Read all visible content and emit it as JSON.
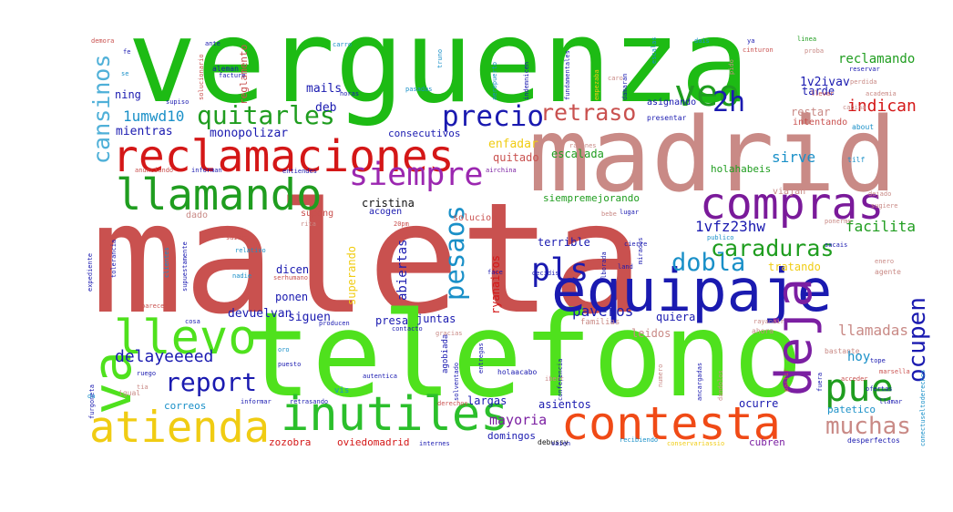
{
  "words": [
    {
      "text": "maleta",
      "color": "#c9514f"
    },
    {
      "text": "telefono",
      "color": "#4fe11d"
    },
    {
      "text": "verguenza",
      "color": "#1dbb14"
    },
    {
      "text": "madrid",
      "color": "#c98a86"
    },
    {
      "text": "equipaje",
      "color": "#1a1ab0"
    },
    {
      "text": "reclamaciones",
      "color": "#d41717"
    },
    {
      "text": "llamando",
      "color": "#1f9d1f"
    },
    {
      "text": "compras",
      "color": "#7a1a9a"
    },
    {
      "text": "inutiles",
      "color": "#2bbf2b"
    },
    {
      "text": "contesta",
      "color": "#f04a16"
    },
    {
      "text": "atienda",
      "color": "#f0cc13"
    },
    {
      "text": "deja",
      "color": "#7b1fa2"
    },
    {
      "text": "siempre",
      "color": "#9b27b0"
    },
    {
      "text": "llevo",
      "color": "#4fe11d"
    },
    {
      "text": "va",
      "color": "#4fe11d"
    },
    {
      "text": "veo",
      "color": "#1f9d1f"
    },
    {
      "text": "pue",
      "color": "#1f9d1f"
    },
    {
      "text": "report",
      "color": "#1a1ab0"
    },
    {
      "text": "quitarles",
      "color": "#1f9d1f"
    },
    {
      "text": "retraso",
      "color": "#c9514f"
    },
    {
      "text": "precio",
      "color": "#1a1ab0"
    },
    {
      "text": "pls",
      "color": "#1a1ab0"
    },
    {
      "text": "dobla",
      "color": "#1a90c8"
    },
    {
      "text": "caraduras",
      "color": "#1f9d1f"
    },
    {
      "text": "muchas",
      "color": "#c98a86"
    },
    {
      "text": "2h",
      "color": "#1a1ab0"
    },
    {
      "text": "cansinos",
      "color": "#4fb0d8"
    },
    {
      "text": "pesaos",
      "color": "#1a90c8"
    },
    {
      "text": "ocupen",
      "color": "#1a1ab0"
    },
    {
      "text": "delayeeeed",
      "color": "#1a1ab0"
    },
    {
      "text": "1umwd10",
      "color": "#1a90c8"
    },
    {
      "text": "cristina",
      "color": "#111111"
    },
    {
      "text": "facilita",
      "color": "#1f9d1f"
    },
    {
      "text": "paveros",
      "color": "#1a1ab0"
    },
    {
      "text": "mayoria",
      "color": "#7b1fa2"
    },
    {
      "text": "sirve",
      "color": "#1a90c8"
    },
    {
      "text": "indican",
      "color": "#d41717"
    },
    {
      "text": "1vfz23hw",
      "color": "#1a1ab0"
    },
    {
      "text": "llamadas",
      "color": "#c98a86"
    },
    {
      "text": "1v2ivav",
      "color": "#1a1ab0"
    },
    {
      "text": "hoy",
      "color": "#1a90c8"
    },
    {
      "text": "reclamando",
      "color": "#1f9d1f"
    },
    {
      "text": "monopolizar",
      "color": "#1a1ab0"
    },
    {
      "text": "mientras",
      "color": "#1a1ab0"
    },
    {
      "text": "consecutivos",
      "color": "#1a1ab0"
    },
    {
      "text": "enfadar",
      "color": "#f0cc13"
    },
    {
      "text": "quitado",
      "color": "#c9514f"
    },
    {
      "text": "escalada",
      "color": "#1f9d1f"
    },
    {
      "text": "siempremejorando",
      "color": "#1f9d1f"
    },
    {
      "text": "holahabeis",
      "color": "#1f9d1f"
    },
    {
      "text": "restar",
      "color": "#c98a86"
    },
    {
      "text": "tratando",
      "color": "#f0cc13"
    },
    {
      "text": "devuelvan",
      "color": "#1a1ab0"
    },
    {
      "text": "siguen",
      "color": "#1a1ab0"
    },
    {
      "text": "ponen",
      "color": "#1a1ab0"
    },
    {
      "text": "dicen",
      "color": "#1a1ab0"
    },
    {
      "text": "quiera",
      "color": "#1a1ab0"
    },
    {
      "text": "leidos",
      "color": "#c98a86"
    },
    {
      "text": "abiertas",
      "color": "#1a1ab0"
    },
    {
      "text": "superando",
      "color": "#f0cc13"
    },
    {
      "text": "ryanairos",
      "color": "#d41717"
    },
    {
      "text": "terrible",
      "color": "#1a1ab0"
    },
    {
      "text": "largas",
      "color": "#1a1ab0"
    },
    {
      "text": "asientos",
      "color": "#1a1ab0"
    },
    {
      "text": "ocurre",
      "color": "#1a1ab0"
    },
    {
      "text": "domingos",
      "color": "#1a1ab0"
    },
    {
      "text": "cubren",
      "color": "#7b1fa2"
    },
    {
      "text": "patetico",
      "color": "#1a90c8"
    },
    {
      "text": "zozobra",
      "color": "#d41717"
    },
    {
      "text": "oviedomadrid",
      "color": "#d41717"
    },
    {
      "text": "correos",
      "color": "#1a90c8"
    },
    {
      "text": "presa",
      "color": "#1a1ab0"
    },
    {
      "text": "juntas",
      "color": "#1a1ab0"
    },
    {
      "text": "mails",
      "color": "#1a1ab0"
    },
    {
      "text": "deb",
      "color": "#1a1ab0"
    },
    {
      "text": "tarde",
      "color": "#1a1ab0"
    },
    {
      "text": "asignando",
      "color": "#1a1ab0"
    },
    {
      "text": "intentando",
      "color": "#c9514f"
    },
    {
      "text": "ning",
      "color": "#1a1ab0"
    },
    {
      "text": "reglamento",
      "color": "#c9514f"
    },
    {
      "text": "acogen",
      "color": "#1a1ab0"
    },
    {
      "text": "solucion",
      "color": "#c9514f"
    },
    {
      "text": "supong",
      "color": "#c9514f"
    },
    {
      "text": "dado",
      "color": "#c98a86"
    },
    {
      "text": "viajan",
      "color": "#c98a86"
    },
    {
      "text": "bastante",
      "color": "#c98a86"
    },
    {
      "text": "agente",
      "color": "#c98a86"
    },
    {
      "text": "debussy",
      "color": "#111111"
    },
    {
      "text": "vis",
      "color": "#1a90c8"
    },
    {
      "text": "familias",
      "color": "#c98a86"
    },
    {
      "text": "agobiada",
      "color": "#1a1ab0"
    },
    {
      "text": "desperfectos",
      "color": "#1a1ab0"
    },
    {
      "text": "ahora",
      "color": "#c98a86"
    },
    {
      "text": "holaacabo",
      "color": "#1a1ab0"
    },
    {
      "text": "expediente",
      "color": "#1a1ab0"
    },
    {
      "text": "furgoneta",
      "color": "#1a1ab0"
    },
    {
      "text": "conectuseltoderechos",
      "color": "#1a90c8"
    },
    {
      "text": "facture",
      "color": "#1a1ab0"
    },
    {
      "text": "igual",
      "color": "#c98a86"
    },
    {
      "text": "demora",
      "color": "#c9514f"
    },
    {
      "text": "linea",
      "color": "#1f9d1f"
    },
    {
      "text": "proba",
      "color": "#c98a86"
    },
    {
      "text": "cinturon",
      "color": "#c9514f"
    },
    {
      "text": "pido",
      "color": "#c98a86"
    },
    {
      "text": "tilf",
      "color": "#1a90c8"
    },
    {
      "text": "dejado",
      "color": "#c98a86"
    },
    {
      "text": "sugiere",
      "color": "#c98a86"
    },
    {
      "text": "llevar",
      "color": "#c9514f"
    },
    {
      "text": "cabina",
      "color": "#c98a86"
    },
    {
      "text": "academia",
      "color": "#c98a86"
    },
    {
      "text": "about",
      "color": "#1a90c8"
    },
    {
      "text": "reservar",
      "color": "#1a1ab0"
    },
    {
      "text": "presentar",
      "color": "#1a1ab0"
    },
    {
      "text": "perdida",
      "color": "#c98a86"
    },
    {
      "text": "caro",
      "color": "#c98a86"
    },
    {
      "text": "aleman",
      "color": "#1a1ab0"
    },
    {
      "text": "supiso",
      "color": "#1a1ab0"
    },
    {
      "text": "horas",
      "color": "#1a1ab0"
    },
    {
      "text": "anunciando",
      "color": "#c9514f"
    },
    {
      "text": "informan",
      "color": "#1a1ab0"
    },
    {
      "text": "entiendes",
      "color": "#1a1ab0"
    },
    {
      "text": "airchina",
      "color": "#7b1fa2"
    },
    {
      "text": "razones",
      "color": "#c98a86"
    },
    {
      "text": "rita",
      "color": "#c98a86"
    },
    {
      "text": "saidra",
      "color": "#c9514f"
    },
    {
      "text": "relativo",
      "color": "#1a90c8"
    },
    {
      "text": "serhumano",
      "color": "#c9514f"
    },
    {
      "text": "nadie",
      "color": "#1a90c8"
    },
    {
      "text": "tolerancia",
      "color": "#1a1ab0"
    },
    {
      "text": "clientes",
      "color": "#1a90c8"
    },
    {
      "text": "supuestamente",
      "color": "#1a1ab0"
    },
    {
      "text": "gracias",
      "color": "#c98a86"
    },
    {
      "text": "producen",
      "color": "#1a1ab0"
    },
    {
      "text": "contacto",
      "color": "#1a1ab0"
    },
    {
      "text": "puesto",
      "color": "#1a1ab0"
    },
    {
      "text": "ruego",
      "color": "#1a1ab0"
    },
    {
      "text": "parecer",
      "color": "#c9514f"
    },
    {
      "text": "cosa",
      "color": "#1a1ab0"
    },
    {
      "text": "informar",
      "color": "#1a1ab0"
    },
    {
      "text": "retrasando",
      "color": "#1a1ab0"
    },
    {
      "text": "derechos",
      "color": "#c9514f"
    },
    {
      "text": "internes",
      "color": "#1a1ab0"
    },
    {
      "text": "recibiendo",
      "color": "#1a90c8"
    },
    {
      "text": "conservariassio",
      "color": "#f0cc13"
    },
    {
      "text": "saien",
      "color": "#1a1ab0"
    },
    {
      "text": "ibert",
      "color": "#c98a86"
    },
    {
      "text": "entregas",
      "color": "#1a1ab0"
    },
    {
      "text": "decidis",
      "color": "#1a1ab0"
    },
    {
      "text": "cierre",
      "color": "#1a1ab0"
    },
    {
      "text": "land",
      "color": "#1a1ab0"
    },
    {
      "text": "publico",
      "color": "#1a90c8"
    },
    {
      "text": "face",
      "color": "#1a1ab0"
    },
    {
      "text": "lugar",
      "color": "#1a1ab0"
    },
    {
      "text": "bebe",
      "color": "#c98a86"
    },
    {
      "text": "ponerme",
      "color": "#c98a86"
    },
    {
      "text": "sacais",
      "color": "#1a1ab0"
    },
    {
      "text": "enero",
      "color": "#c98a86"
    },
    {
      "text": "ofertas",
      "color": "#1a1ab0"
    },
    {
      "text": "acceder",
      "color": "#c9514f"
    },
    {
      "text": "marsella",
      "color": "#c9514f"
    },
    {
      "text": "partir",
      "color": "#c9514f"
    },
    {
      "text": "llamar",
      "color": "#1a1ab0"
    },
    {
      "text": "tope",
      "color": "#1a1ab0"
    },
    {
      "text": "pasadas",
      "color": "#1a90c8"
    },
    {
      "text": "truno",
      "color": "#1a90c8"
    },
    {
      "text": "fundamentales",
      "color": "#1a1ab0"
    },
    {
      "text": "empezaba",
      "color": "#f0cc13"
    },
    {
      "text": "damaran",
      "color": "#1a1ab0"
    },
    {
      "text": "aeropuerto",
      "color": "#1a90c8"
    },
    {
      "text": "indemnicen",
      "color": "#1a1ab0"
    },
    {
      "text": "solucionario",
      "color": "#c9514f"
    },
    {
      "text": "escalas",
      "color": "#1a90c8"
    },
    {
      "text": "dais",
      "color": "#1a90c8"
    },
    {
      "text": "fe",
      "color": "#1a1ab0"
    },
    {
      "text": "ante",
      "color": "#1a1ab0"
    },
    {
      "text": "carro",
      "color": "#1a90c8"
    },
    {
      "text": "se",
      "color": "#1a90c8"
    },
    {
      "text": "ya",
      "color": "#1a1ab0"
    },
    {
      "text": "tia",
      "color": "#c98a86"
    },
    {
      "text": "da",
      "color": "#1a90c8"
    },
    {
      "text": "oro",
      "color": "#1a90c8"
    },
    {
      "text": "20pm",
      "color": "#c9514f"
    },
    {
      "text": "alborada",
      "color": "#1a1ab0"
    },
    {
      "text": "mirados",
      "color": "#1a1ab0"
    },
    {
      "text": "conferencia",
      "color": "#1a1ab0"
    },
    {
      "text": "solventado",
      "color": "#1a1ab0"
    },
    {
      "text": "autentica",
      "color": "#1a1ab0"
    },
    {
      "text": "rayanair",
      "color": "#c98a86"
    },
    {
      "text": "numero",
      "color": "#c98a86"
    },
    {
      "text": "ancargadas",
      "color": "#1a1ab0"
    },
    {
      "text": "dandolos",
      "color": "#c98a86"
    },
    {
      "text": "fuera",
      "color": "#1a1ab0"
    }
  ]
}
